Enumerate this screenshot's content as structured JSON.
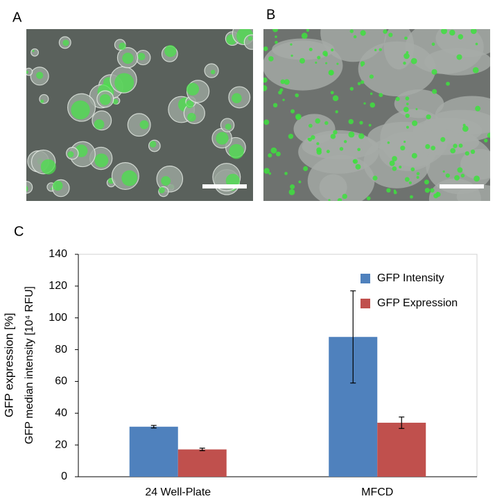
{
  "panel_labels": [
    "A",
    "B",
    "C"
  ],
  "chart_data": {
    "type": "bar",
    "y_label": [
      "GFP expression [%]",
      "GFP median intensity [10⁴ RFU]"
    ],
    "categories": [
      "24 Well-Plate",
      "MFCD"
    ],
    "series": [
      {
        "name": "GFP Intensity",
        "color": "#4f81bd",
        "values": [
          31.5,
          88
        ],
        "errors": [
          0.8,
          29
        ]
      },
      {
        "name": "GFP Expression",
        "color": "#c0504d",
        "values": [
          17.2,
          34
        ],
        "errors": [
          0.8,
          3.6
        ]
      }
    ],
    "ylim": [
      0,
      140
    ],
    "yticks": [
      0,
      20,
      40,
      60,
      80,
      100,
      120,
      140
    ],
    "legend": "upper right"
  }
}
